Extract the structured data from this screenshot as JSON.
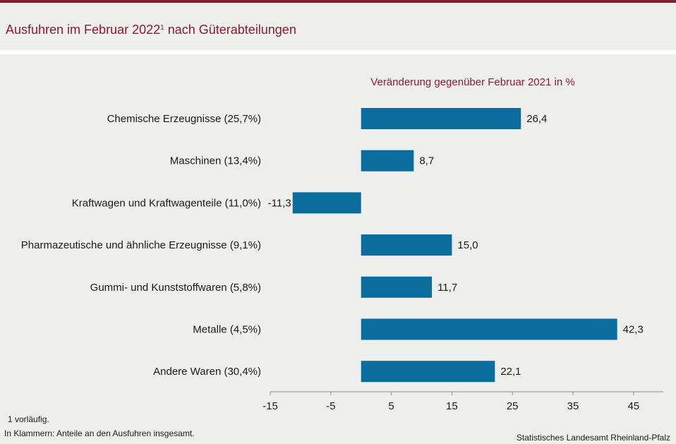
{
  "title": {
    "text": "Ausfuhren im Februar 2022",
    "superscript": "1",
    "suffix": " nach Güterabteilungen"
  },
  "colors": {
    "accent": "#8a1c2b",
    "bar": "#0a6d9e",
    "background": "#eeefed"
  },
  "chart_data": {
    "type": "bar",
    "orientation": "horizontal",
    "legend_label": "Veränderung  gegenüber  Februar 2021 in %",
    "categories": [
      "Chemische Erzeugnisse (25,7%)",
      "Maschinen (13,4%)",
      "Kraftwagen und Kraftwagenteile (11,0%)",
      "Pharmazeutische und ähnliche Erzeugnisse (9,1%)",
      "Gummi- und Kunststoffwaren (5,8%)",
      "Metalle (4,5%)",
      "Andere Waren (30,4%)"
    ],
    "values": [
      26.4,
      8.7,
      -11.3,
      15.0,
      11.7,
      42.3,
      22.1
    ],
    "value_labels": [
      "26,4",
      "8,7",
      "-11,3",
      "15,0",
      "11,7",
      "42,3",
      "22,1"
    ],
    "xlim": [
      -15,
      50
    ],
    "x_ticks": [
      -15,
      -5,
      5,
      15,
      25,
      35,
      45
    ],
    "x_tick_labels": [
      "-15",
      "-5",
      "5",
      "15",
      "25",
      "35",
      "45"
    ],
    "grid": false
  },
  "footnotes": {
    "note1": "1 vorläufig.",
    "note2": "In Klammern:  Anteile an den Ausfuhren  insgesamt."
  },
  "source": "Statistisches Landesamt  Rheinland-Pfalz"
}
